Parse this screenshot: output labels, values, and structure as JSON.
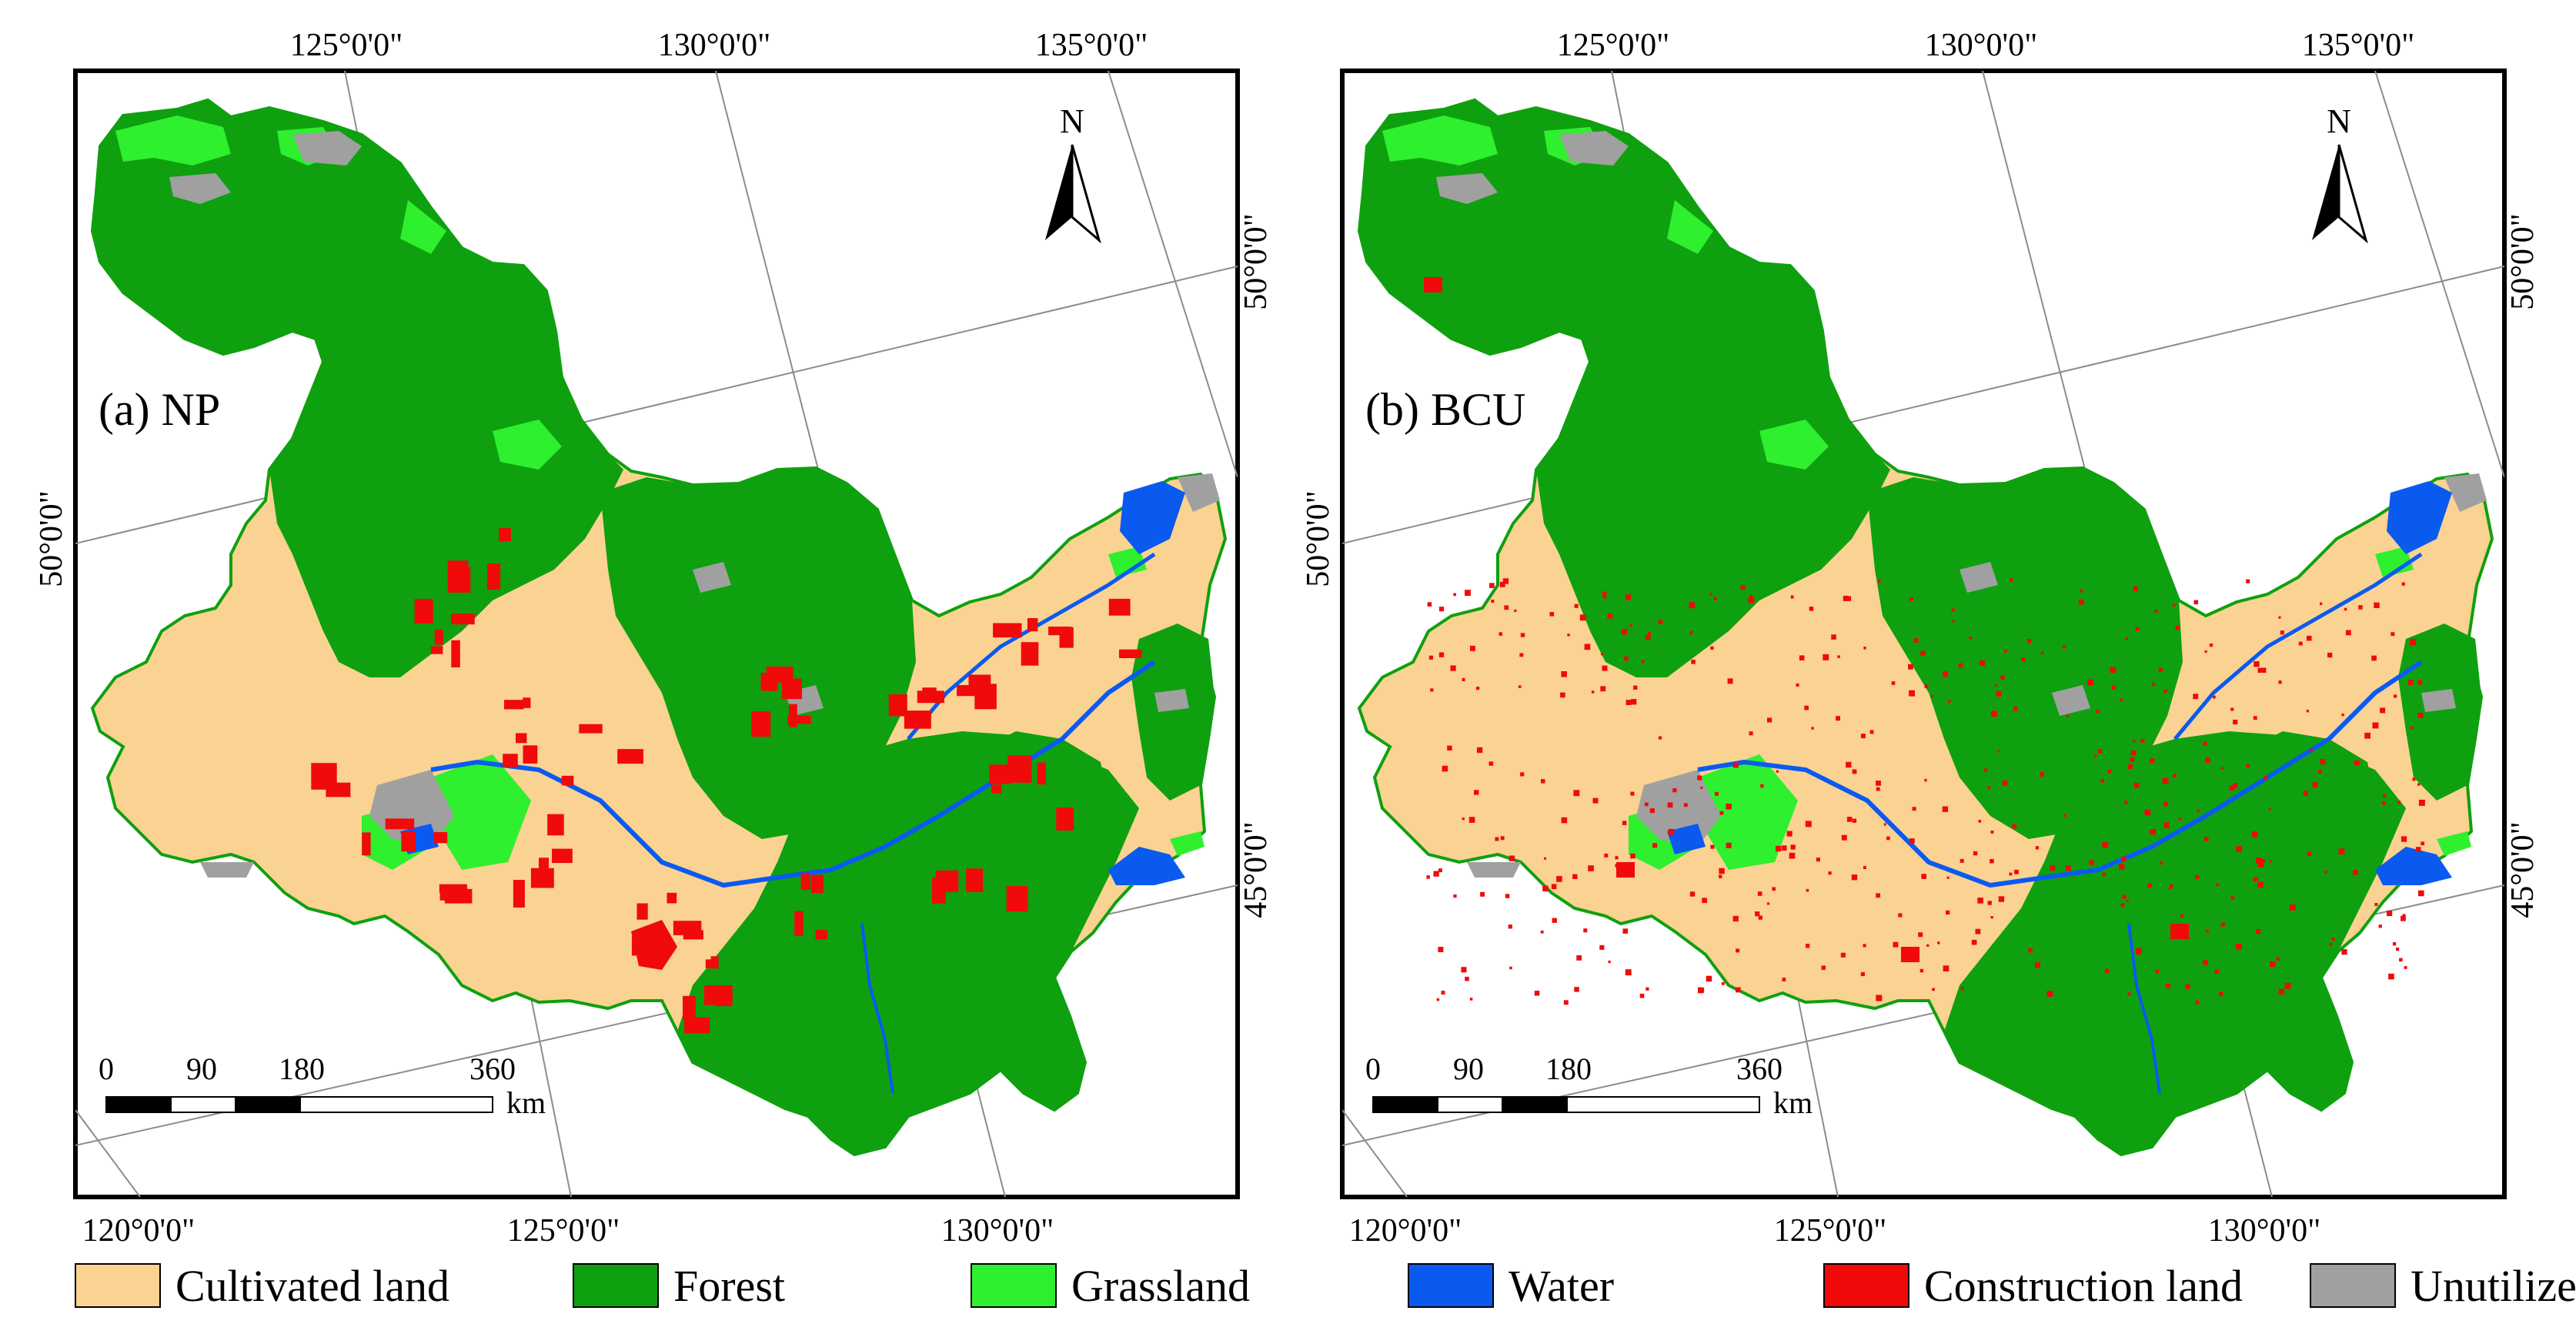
{
  "panels": [
    {
      "title": "(a) NP",
      "top_lon_labels": [
        "125°0'0\"",
        "130°0'0\"",
        "135°0'0\""
      ],
      "bottom_lon_labels": [
        "120°0'0\"",
        "125°0'0\"",
        "130°0'0\""
      ],
      "right_lat_labels": [
        "50°0'0\"",
        "45°0'0\""
      ],
      "left_lat_label": "50°0'0\"",
      "north_label": "N",
      "scale_ticks": [
        "0",
        "90",
        "180",
        "360"
      ],
      "scale_unit": "km",
      "construction_density": "high"
    },
    {
      "title": "(b) BCU",
      "top_lon_labels": [
        "125°0'0\"",
        "130°0'0\"",
        "135°0'0\""
      ],
      "bottom_lon_labels": [
        "120°0'0\"",
        "125°0'0\"",
        "130°0'0\""
      ],
      "right_lat_labels": [
        "50°0'0\"",
        "45°0'0\""
      ],
      "left_lat_label": "50°0'0\"",
      "north_label": "N",
      "scale_ticks": [
        "0",
        "90",
        "180",
        "360"
      ],
      "scale_unit": "km",
      "construction_density": "scattered"
    }
  ],
  "legend": [
    {
      "label": "Cultivated land",
      "color": "#FAD291"
    },
    {
      "label": "Forest",
      "color": "#0FA00F"
    },
    {
      "label": "Grassland",
      "color": "#2EF02E"
    },
    {
      "label": "Water",
      "color": "#0A5AF0"
    },
    {
      "label": "Construction land",
      "color": "#F00A0A"
    },
    {
      "label": "Unutilized land",
      "color": "#A0A0A0"
    }
  ],
  "colors": {
    "cultivated": "#FAD291",
    "forest": "#0FA00F",
    "grassland": "#2EF02E",
    "water": "#0A5AF0",
    "construction": "#F00A0A",
    "unutilized": "#A0A0A0",
    "graticule": "#8C8C8C"
  }
}
